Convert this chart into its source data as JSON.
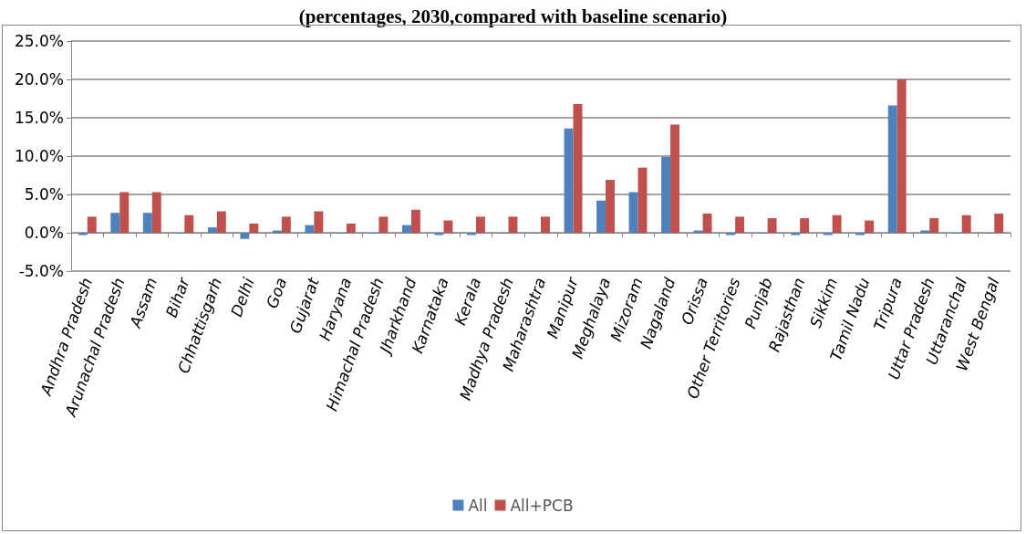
{
  "chart_data": {
    "type": "bar",
    "title": "(percentages, 2030,compared with baseline scenario)",
    "categories": [
      "Andhra Pradesh",
      "Arunachal Pradesh",
      "Assam",
      "Bihar",
      "Chhattisgarh",
      "Delhi",
      "Goa",
      "Gujarat",
      "Haryana",
      "Himachal Pradesh",
      "Jharkhand",
      "Karnataka",
      "Kerala",
      "Madhya Pradesh",
      "Maharashtra",
      "Manipur",
      "Meghalaya",
      "Mizoram",
      "Nagaland",
      "Orissa",
      "Other Territories",
      "Punjab",
      "Rajasthan",
      "Sikkim",
      "Tamil Nadu",
      "Tripura",
      "Uttar Pradesh",
      "Uttaranchal",
      "West Bengal"
    ],
    "series": [
      {
        "name": "All",
        "color": "#4f81bd",
        "values": [
          -0.3,
          2.6,
          2.6,
          -0.1,
          0.7,
          -0.8,
          0.3,
          1.0,
          -0.1,
          -0.1,
          1.0,
          -0.3,
          -0.3,
          -0.1,
          -0.1,
          13.6,
          4.2,
          5.3,
          9.9,
          0.3,
          -0.3,
          -0.1,
          -0.3,
          -0.3,
          -0.3,
          16.6,
          0.3,
          -0.1,
          -0.1
        ]
      },
      {
        "name": "All+PCB",
        "color": "#c0504d",
        "values": [
          2.1,
          5.3,
          5.3,
          2.3,
          2.8,
          1.2,
          2.1,
          2.8,
          1.2,
          2.1,
          3.0,
          1.6,
          2.1,
          2.1,
          2.1,
          16.8,
          6.9,
          8.5,
          14.1,
          2.5,
          2.1,
          1.9,
          1.9,
          2.3,
          1.6,
          20.0,
          1.9,
          2.3,
          2.5
        ]
      }
    ],
    "ylim": [
      -5,
      25
    ],
    "yticks": [
      {
        "value": -5,
        "label": "-5.0%"
      },
      {
        "value": 0,
        "label": "0.0%"
      },
      {
        "value": 5,
        "label": "5.0%"
      },
      {
        "value": 10,
        "label": "10.0%"
      },
      {
        "value": 15,
        "label": "15.0%"
      },
      {
        "value": 20,
        "label": "20.0%"
      },
      {
        "value": 25,
        "label": "25.0%"
      }
    ],
    "grid": "y",
    "legend": "bottom"
  }
}
